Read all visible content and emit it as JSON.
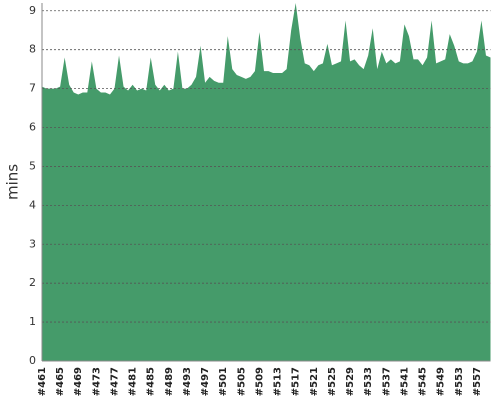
{
  "chart_data": {
    "type": "area",
    "y_label": "mins",
    "color": "#459b6a",
    "grid": true,
    "categories": [
      "#461",
      null,
      null,
      null,
      "#465",
      null,
      null,
      null,
      "#469",
      null,
      null,
      null,
      "#473",
      null,
      null,
      null,
      "#477",
      null,
      null,
      null,
      "#481",
      null,
      null,
      null,
      "#485",
      null,
      null,
      null,
      "#489",
      null,
      null,
      null,
      "#493",
      null,
      null,
      null,
      "#497",
      null,
      null,
      null,
      "#501",
      null,
      null,
      null,
      "#505",
      null,
      null,
      null,
      "#509",
      null,
      null,
      null,
      "#513",
      null,
      null,
      null,
      "#517",
      null,
      null,
      null,
      "#521",
      null,
      null,
      null,
      "#525",
      null,
      null,
      null,
      "#529",
      null,
      null,
      null,
      "#533",
      null,
      null,
      null,
      "#537",
      null,
      null,
      null,
      "#541",
      null,
      null,
      null,
      "#545",
      null,
      null,
      null,
      "#549",
      null,
      null,
      null,
      "#553",
      null,
      null,
      null,
      "#557",
      null,
      null,
      null
    ],
    "values": [
      7.05,
      7.0,
      7.0,
      7.0,
      7.05,
      7.8,
      7.1,
      6.9,
      6.85,
      6.9,
      6.9,
      7.7,
      7.0,
      6.9,
      6.9,
      6.85,
      7.0,
      7.85,
      7.05,
      6.95,
      7.1,
      6.95,
      7.0,
      6.95,
      7.8,
      7.1,
      6.95,
      7.1,
      6.95,
      7.0,
      7.95,
      7.0,
      7.0,
      7.1,
      7.3,
      8.1,
      7.15,
      7.3,
      7.2,
      7.15,
      7.15,
      8.35,
      7.5,
      7.35,
      7.3,
      7.25,
      7.3,
      7.45,
      8.45,
      7.45,
      7.45,
      7.4,
      7.4,
      7.4,
      7.5,
      8.5,
      9.2,
      8.3,
      7.65,
      7.6,
      7.45,
      7.6,
      7.65,
      8.15,
      7.6,
      7.65,
      7.7,
      8.75,
      7.7,
      7.75,
      7.6,
      7.5,
      7.85,
      8.55,
      7.5,
      7.95,
      7.65,
      7.75,
      7.65,
      7.7,
      8.65,
      8.35,
      7.75,
      7.75,
      7.6,
      7.8,
      8.75,
      7.65,
      7.7,
      7.75,
      8.4,
      8.1,
      7.7,
      7.65,
      7.65,
      7.7,
      7.95,
      8.75,
      7.85,
      7.8
    ],
    "ylim": [
      0,
      9.2
    ],
    "yticks": [
      0,
      1,
      2,
      3,
      4,
      5,
      6,
      7,
      8,
      9
    ]
  }
}
